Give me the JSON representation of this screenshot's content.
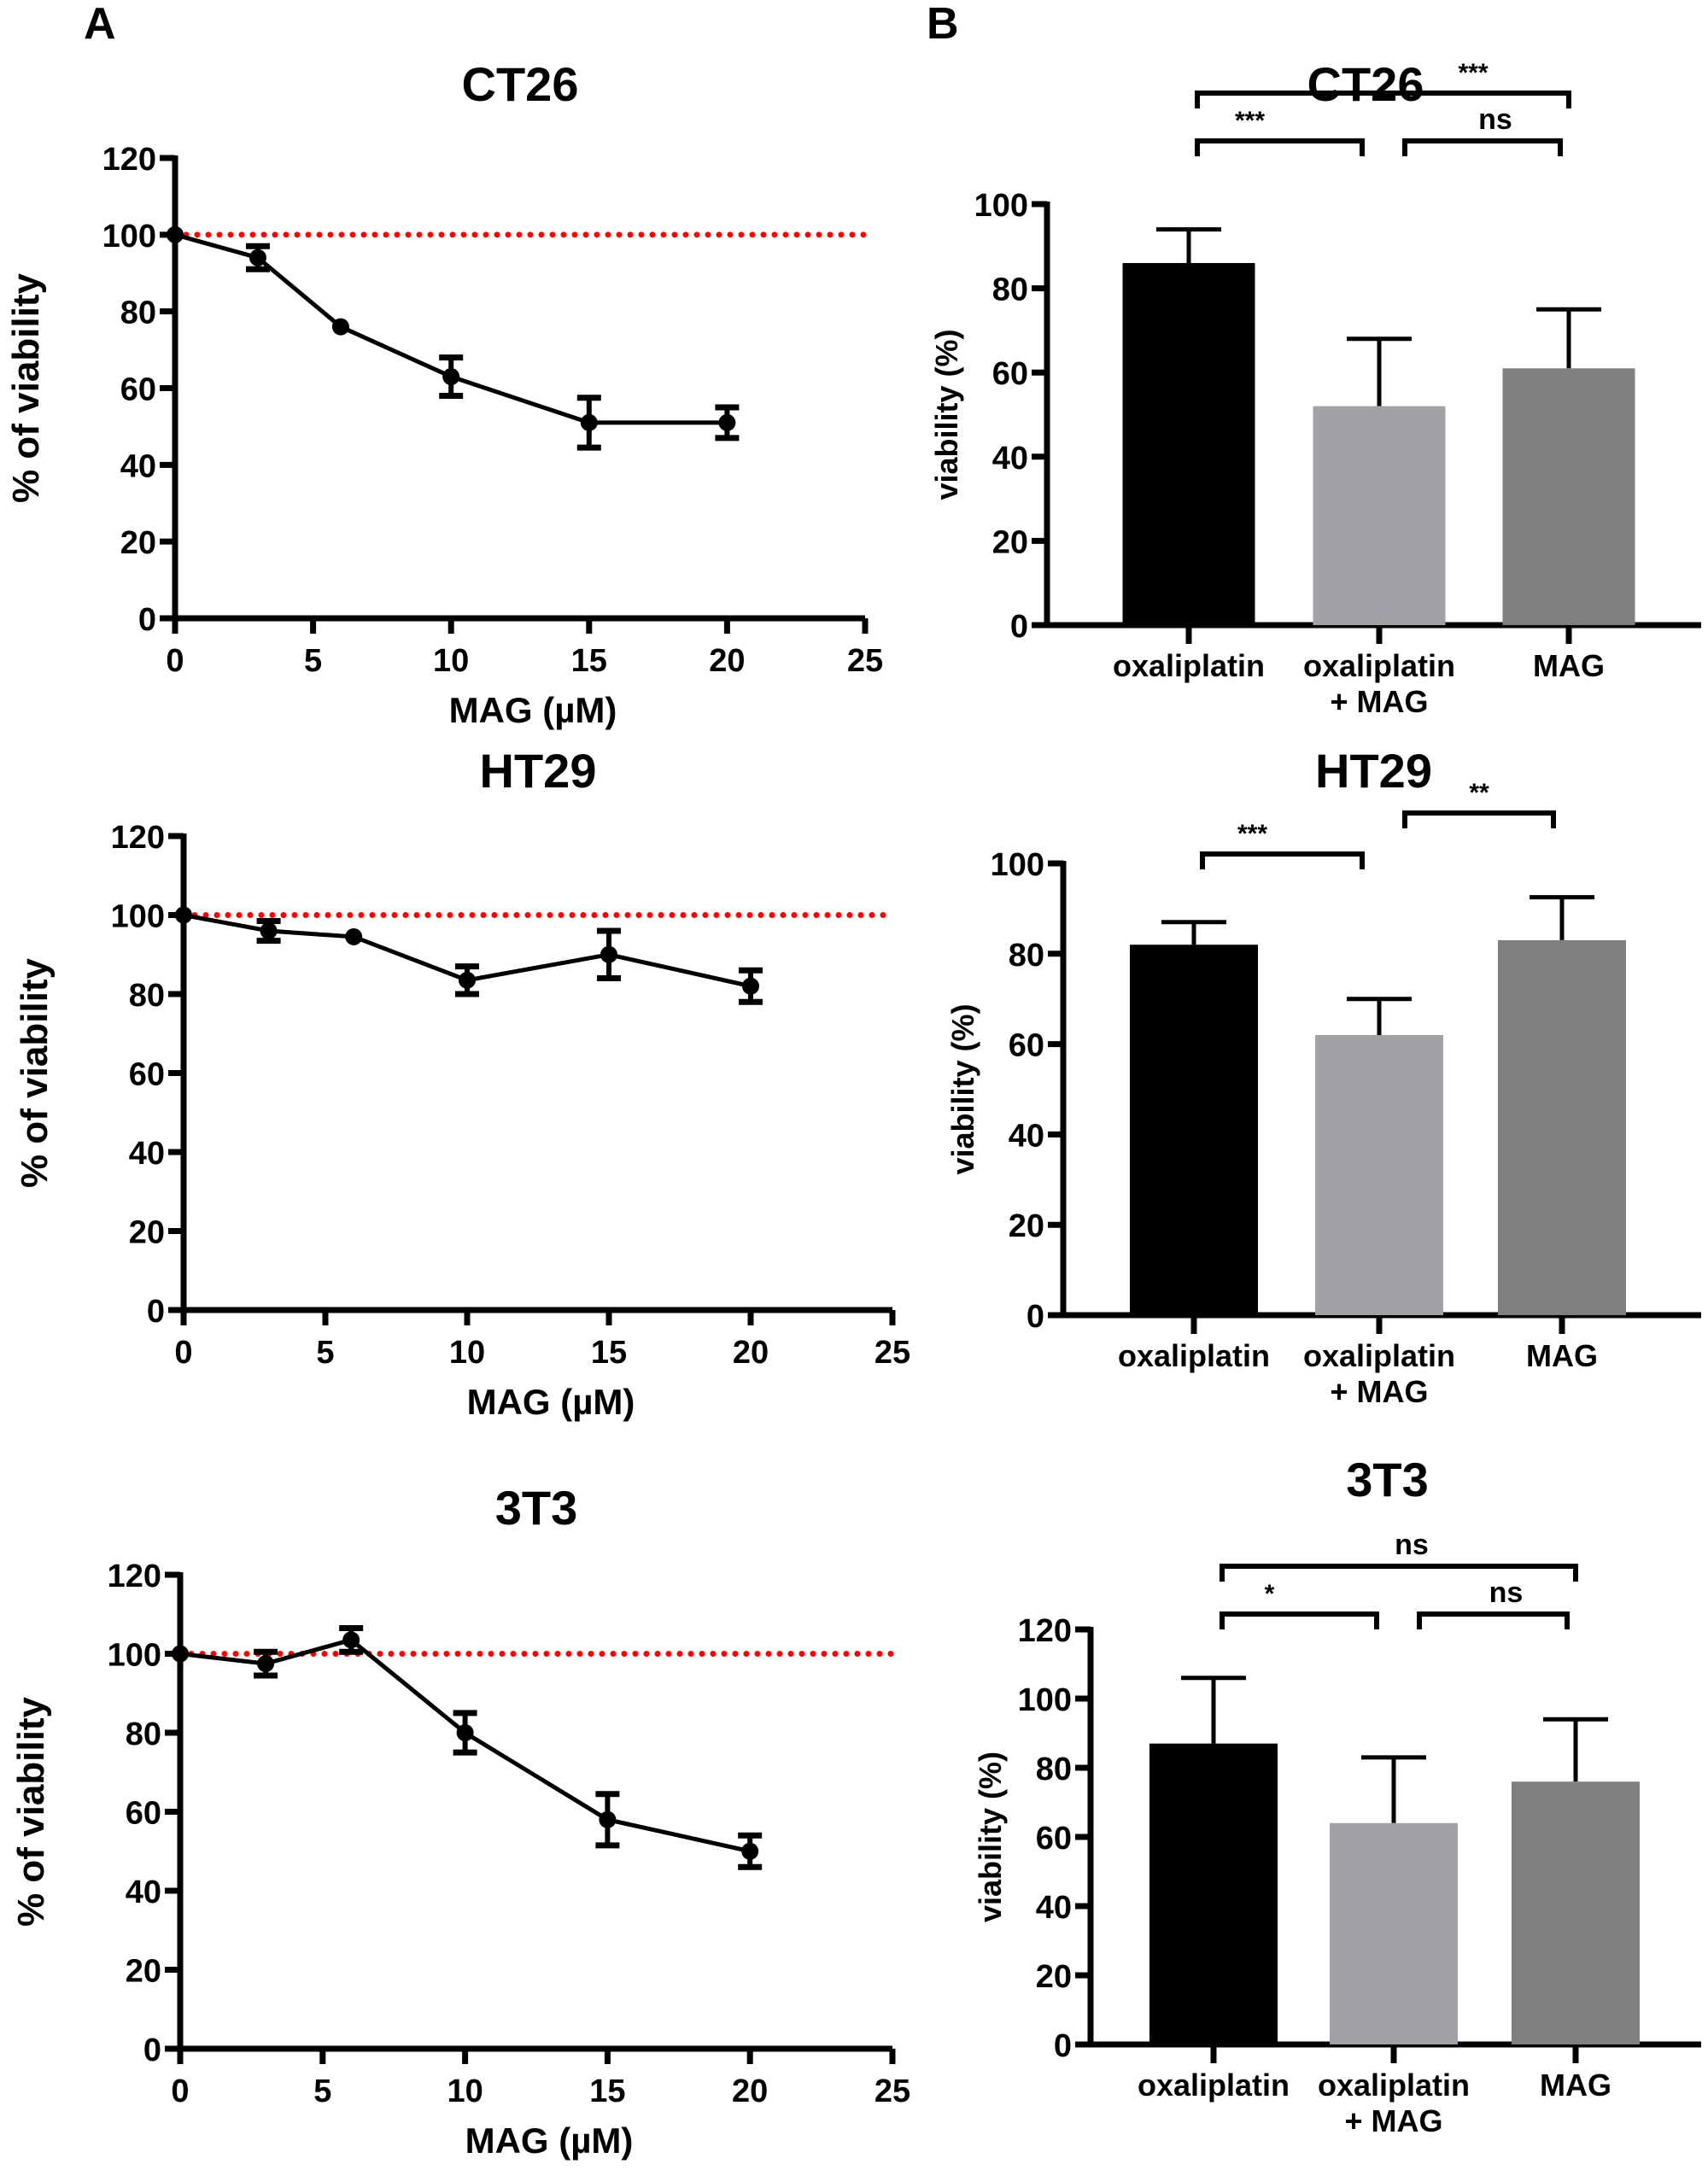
{
  "panel_labels": [
    "A",
    "B"
  ],
  "chart_data": [
    {
      "panel": "A",
      "type": "line",
      "title": "CT26",
      "xlabel": "MAG (µM)",
      "ylabel": "% of viability",
      "xlim": [
        0,
        25
      ],
      "ylim": [
        0,
        120
      ],
      "xticks": [
        0,
        5,
        10,
        15,
        20,
        25
      ],
      "yticks": [
        0,
        20,
        40,
        60,
        80,
        100,
        120
      ],
      "x": [
        0,
        3,
        6,
        10,
        15,
        20
      ],
      "y": [
        100,
        94,
        76,
        63,
        51,
        51
      ],
      "error": [
        0,
        3,
        1,
        5,
        6.5,
        4
      ],
      "reference_line": {
        "y": 100,
        "color": "#ff0000",
        "style": "dotted"
      },
      "line_color": "#000000"
    },
    {
      "panel": "A",
      "type": "line",
      "title": "HT29",
      "xlabel": "MAG (µM)",
      "ylabel": "% of viability",
      "xlim": [
        0,
        25
      ],
      "ylim": [
        0,
        120
      ],
      "xticks": [
        0,
        5,
        10,
        15,
        20,
        25
      ],
      "yticks": [
        0,
        20,
        40,
        60,
        80,
        100,
        120
      ],
      "x": [
        0,
        3,
        6,
        10,
        15,
        20
      ],
      "y": [
        100,
        96,
        94.5,
        83.5,
        90,
        82
      ],
      "error": [
        0,
        2.5,
        1,
        3.5,
        6,
        4
      ],
      "reference_line": {
        "y": 100,
        "color": "#ff0000",
        "style": "dotted"
      },
      "line_color": "#000000"
    },
    {
      "panel": "A",
      "type": "line",
      "title": "3T3",
      "xlabel": "MAG (µM)",
      "ylabel": "% of viability",
      "xlim": [
        0,
        25
      ],
      "ylim": [
        0,
        120
      ],
      "xticks": [
        0,
        5,
        10,
        15,
        20,
        25
      ],
      "yticks": [
        0,
        20,
        40,
        60,
        80,
        100,
        120
      ],
      "x": [
        0,
        3,
        6,
        10,
        15,
        20
      ],
      "y": [
        100,
        97.5,
        103.5,
        80,
        58,
        50
      ],
      "error": [
        0,
        3,
        3,
        5,
        6.5,
        4
      ],
      "reference_line": {
        "y": 100,
        "color": "#ff0000",
        "style": "dotted"
      },
      "line_color": "#000000"
    },
    {
      "panel": "B",
      "type": "bar",
      "title": "CT26",
      "ylabel": "viability (%)",
      "ylim": [
        0,
        100
      ],
      "yticks": [
        0,
        20,
        40,
        60,
        80,
        100
      ],
      "categories": [
        [
          "oxaliplatin"
        ],
        [
          "oxaliplatin",
          "+ MAG"
        ],
        [
          "MAG"
        ]
      ],
      "values": [
        86,
        52,
        61
      ],
      "error": [
        8,
        16,
        14
      ],
      "colors": [
        "#000000",
        "#a2a1a6",
        "#808080"
      ],
      "significance": [
        {
          "from": 0,
          "to": 2,
          "label": "***",
          "level": 2
        },
        {
          "from": 0,
          "to": 1,
          "label": "***",
          "level": 1
        },
        {
          "from": 1,
          "to": 2,
          "label": "ns",
          "level": 1
        }
      ]
    },
    {
      "panel": "B",
      "type": "bar",
      "title": "HT29",
      "ylabel": "viability (%)",
      "ylim": [
        0,
        100
      ],
      "yticks": [
        0,
        20,
        40,
        60,
        80,
        100
      ],
      "categories": [
        [
          "oxaliplatin"
        ],
        [
          "oxaliplatin",
          "+ MAG"
        ],
        [
          "MAG"
        ]
      ],
      "values": [
        82,
        62,
        83
      ],
      "error": [
        5,
        8,
        9.5
      ],
      "colors": [
        "#000000",
        "#a2a1a6",
        "#808080"
      ],
      "significance": [
        {
          "from": 0,
          "to": 1,
          "label": "***",
          "level": 1
        },
        {
          "from": 1,
          "to": 2,
          "label": "**",
          "level": 2
        }
      ]
    },
    {
      "panel": "B",
      "type": "bar",
      "title": "3T3",
      "ylabel": "viability (%)",
      "ylim": [
        0,
        120
      ],
      "yticks": [
        0,
        20,
        40,
        60,
        80,
        100,
        120
      ],
      "categories": [
        [
          "oxaliplatin"
        ],
        [
          "oxaliplatin",
          "+ MAG"
        ],
        [
          "MAG"
        ]
      ],
      "values": [
        87,
        64,
        76
      ],
      "error": [
        19,
        19,
        18
      ],
      "colors": [
        "#000000",
        "#a2a1a6",
        "#808080"
      ],
      "significance": [
        {
          "from": 0,
          "to": 2,
          "label": "ns",
          "level": 2
        },
        {
          "from": 0,
          "to": 1,
          "label": "*",
          "level": 1
        },
        {
          "from": 1,
          "to": 2,
          "label": "ns",
          "level": 1
        }
      ]
    }
  ]
}
